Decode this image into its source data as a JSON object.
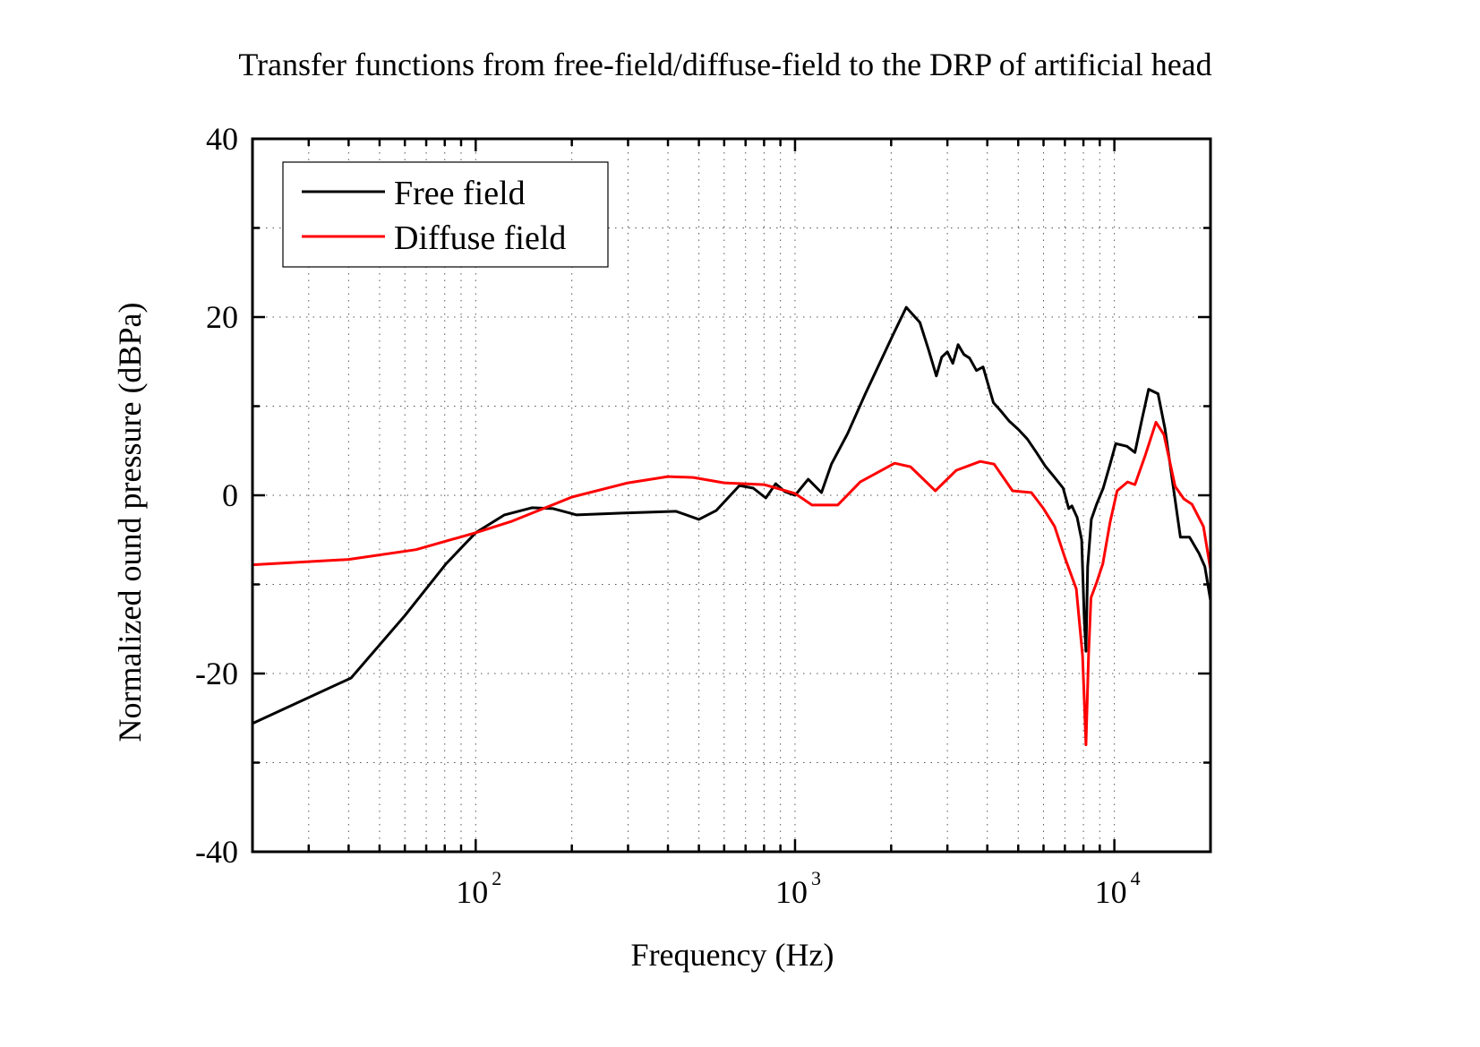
{
  "chart_data": {
    "type": "line",
    "title": "Transfer functions from free-field/diffuse-field to the DRP of artificial head",
    "xlabel": "Frequency (Hz)",
    "ylabel": "Normalized ound pressure (dBPa)",
    "xscale": "log",
    "xlim": [
      20,
      20000
    ],
    "ylim": [
      -40,
      40
    ],
    "grid": true,
    "legend_position": "top-left",
    "x_ticks": [
      {
        "value": 100,
        "base": "10",
        "exp": "2"
      },
      {
        "value": 1000,
        "base": "10",
        "exp": "3"
      },
      {
        "value": 10000,
        "base": "10",
        "exp": "4"
      }
    ],
    "y_ticks": [
      {
        "value": 40,
        "label": "40"
      },
      {
        "value": 20,
        "label": "20"
      },
      {
        "value": 0,
        "label": "0"
      },
      {
        "value": -20,
        "label": "-20"
      },
      {
        "value": -40,
        "label": "-40"
      }
    ],
    "series": [
      {
        "name": "Free field",
        "color": "#000000",
        "x": [
          20,
          40.7,
          60,
          80.7,
          100,
          123,
          150,
          175,
          207,
          287,
          424,
          500,
          567,
          670,
          740,
          810,
          870,
          930,
          1000,
          1100,
          1210,
          1300,
          1460,
          1660,
          2020,
          2230,
          2460,
          2620,
          2770,
          2880,
          3000,
          3120,
          3240,
          3380,
          3520,
          3700,
          3880,
          4180,
          4400,
          4690,
          5000,
          5340,
          5700,
          6070,
          6500,
          6910,
          7200,
          7360,
          7650,
          7900,
          8050,
          8150,
          8250,
          8470,
          8800,
          9230,
          9700,
          10100,
          10950,
          11600,
          12200,
          12800,
          13700,
          14400,
          15100,
          16100,
          17200,
          18400,
          19200,
          20000
        ],
        "y": [
          -25.6,
          -20.5,
          -13.5,
          -7.7,
          -4.2,
          -2.2,
          -1.4,
          -1.5,
          -2.2,
          -2.0,
          -1.8,
          -2.7,
          -1.7,
          1.1,
          0.8,
          -0.3,
          1.3,
          0.4,
          0.0,
          1.8,
          0.3,
          3.5,
          6.9,
          11.4,
          17.9,
          21.1,
          19.4,
          16.3,
          13.4,
          15.5,
          16.1,
          14.8,
          16.9,
          15.8,
          15.4,
          14.0,
          14.4,
          10.4,
          9.5,
          8.3,
          7.4,
          6.3,
          4.8,
          3.3,
          2.0,
          0.8,
          -1.5,
          -1.2,
          -2.5,
          -5.0,
          -13.8,
          -17.5,
          -8.0,
          -2.7,
          -1.0,
          0.8,
          3.5,
          5.8,
          5.5,
          4.8,
          8.5,
          11.9,
          11.4,
          7.5,
          2.3,
          -4.7,
          -4.7,
          -6.5,
          -8.0,
          -11.8
        ]
      },
      {
        "name": "Diffuse field",
        "color": "#ff0000",
        "x": [
          20,
          40,
          65,
          100,
          130,
          200,
          300,
          400,
          480,
          600,
          800,
          1000,
          1130,
          1360,
          1600,
          2050,
          2300,
          2750,
          3200,
          3800,
          4200,
          4800,
          5500,
          6000,
          6500,
          7000,
          7600,
          7950,
          8150,
          8300,
          8450,
          8800,
          9200,
          9700,
          10200,
          11000,
          11600,
          12500,
          13500,
          14300,
          15500,
          16500,
          17500,
          19000,
          20000
        ],
        "y": [
          -7.8,
          -7.2,
          -6.1,
          -4.2,
          -2.9,
          -0.2,
          1.4,
          2.1,
          2.0,
          1.4,
          1.2,
          0.2,
          -1.1,
          -1.1,
          1.5,
          3.6,
          3.2,
          0.5,
          2.8,
          3.8,
          3.5,
          0.5,
          0.3,
          -1.5,
          -3.5,
          -7.0,
          -10.5,
          -18.0,
          -28.0,
          -18.0,
          -11.5,
          -9.8,
          -7.7,
          -3.0,
          0.5,
          1.5,
          1.2,
          4.5,
          8.2,
          6.8,
          1.0,
          -0.4,
          -1.0,
          -3.5,
          -8.3
        ]
      }
    ]
  }
}
